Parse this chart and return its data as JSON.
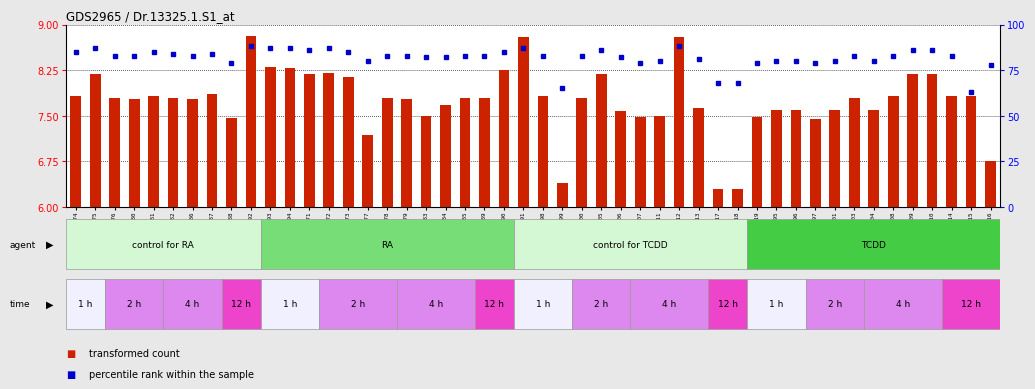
{
  "title": "GDS2965 / Dr.13325.1.S1_at",
  "samples": [
    "GSM228874",
    "GSM228875",
    "GSM228876",
    "GSM228880",
    "GSM228881",
    "GSM228882",
    "GSM228886",
    "GSM228887",
    "GSM228888",
    "GSM228892",
    "GSM228893",
    "GSM228894",
    "GSM228871",
    "GSM228872",
    "GSM228873",
    "GSM228877",
    "GSM228878",
    "GSM228879",
    "GSM228883",
    "GSM228884",
    "GSM228885",
    "GSM228889",
    "GSM228890",
    "GSM228891",
    "GSM228898",
    "GSM228899",
    "GSM228900",
    "GSM228905",
    "GSM228906",
    "GSM228907",
    "GSM228911",
    "GSM228912",
    "GSM228913",
    "GSM228917",
    "GSM228918",
    "GSM228919",
    "GSM228895",
    "GSM228896",
    "GSM228897",
    "GSM228901",
    "GSM228903",
    "GSM228904",
    "GSM228908",
    "GSM228909",
    "GSM228910",
    "GSM228914",
    "GSM228915",
    "GSM228916"
  ],
  "bar_values": [
    7.82,
    8.18,
    7.8,
    7.78,
    7.82,
    7.8,
    7.78,
    7.85,
    7.47,
    8.82,
    8.3,
    8.28,
    8.18,
    8.2,
    8.14,
    7.18,
    7.8,
    7.78,
    7.5,
    7.68,
    7.8,
    7.8,
    8.25,
    8.8,
    7.82,
    6.4,
    7.8,
    8.18,
    7.58,
    7.48,
    7.5,
    8.8,
    7.62,
    6.3,
    6.3,
    7.48,
    7.6,
    7.6,
    7.45,
    7.6,
    7.8,
    7.6,
    7.82,
    8.18,
    8.18,
    7.82,
    7.82,
    6.75
  ],
  "percentile_values": [
    85,
    87,
    83,
    83,
    85,
    84,
    83,
    84,
    79,
    88,
    87,
    87,
    86,
    87,
    85,
    80,
    83,
    83,
    82,
    82,
    83,
    83,
    85,
    87,
    83,
    65,
    83,
    86,
    82,
    79,
    80,
    88,
    81,
    68,
    68,
    79,
    80,
    80,
    79,
    80,
    83,
    80,
    83,
    86,
    86,
    83,
    63,
    78
  ],
  "agent_groups": [
    {
      "label": "control for RA",
      "start": 0,
      "end": 9,
      "color": "#d4f7d4"
    },
    {
      "label": "RA",
      "start": 10,
      "end": 22,
      "color": "#77dd77"
    },
    {
      "label": "control for TCDD",
      "start": 23,
      "end": 34,
      "color": "#d4f7d4"
    },
    {
      "label": "TCDD",
      "start": 35,
      "end": 47,
      "color": "#44cc44"
    }
  ],
  "time_groups": [
    {
      "label": "1 h",
      "start": 0,
      "end": 1,
      "color": "#f0f0ff"
    },
    {
      "label": "2 h",
      "start": 2,
      "end": 4,
      "color": "#dd88ee"
    },
    {
      "label": "4 h",
      "start": 5,
      "end": 7,
      "color": "#dd88ee"
    },
    {
      "label": "12 h",
      "start": 8,
      "end": 9,
      "color": "#ee44cc"
    },
    {
      "label": "1 h",
      "start": 10,
      "end": 12,
      "color": "#f0f0ff"
    },
    {
      "label": "2 h",
      "start": 13,
      "end": 16,
      "color": "#dd88ee"
    },
    {
      "label": "4 h",
      "start": 17,
      "end": 20,
      "color": "#dd88ee"
    },
    {
      "label": "12 h",
      "start": 21,
      "end": 22,
      "color": "#ee44cc"
    },
    {
      "label": "1 h",
      "start": 23,
      "end": 25,
      "color": "#f0f0ff"
    },
    {
      "label": "2 h",
      "start": 26,
      "end": 28,
      "color": "#dd88ee"
    },
    {
      "label": "4 h",
      "start": 29,
      "end": 32,
      "color": "#dd88ee"
    },
    {
      "label": "12 h",
      "start": 33,
      "end": 34,
      "color": "#ee44cc"
    },
    {
      "label": "1 h",
      "start": 35,
      "end": 37,
      "color": "#f0f0ff"
    },
    {
      "label": "2 h",
      "start": 38,
      "end": 40,
      "color": "#dd88ee"
    },
    {
      "label": "4 h",
      "start": 41,
      "end": 44,
      "color": "#dd88ee"
    },
    {
      "label": "12 h",
      "start": 45,
      "end": 47,
      "color": "#ee44cc"
    }
  ],
  "ylim_left": [
    6.0,
    9.0
  ],
  "ylim_right": [
    0,
    100
  ],
  "yticks_left": [
    6.0,
    6.75,
    7.5,
    8.25,
    9.0
  ],
  "yticks_right": [
    0,
    25,
    50,
    75,
    100
  ],
  "bar_color": "#cc2200",
  "percentile_color": "#0000cc",
  "background_color": "#e8e8e8",
  "plot_bg_color": "#ffffff"
}
